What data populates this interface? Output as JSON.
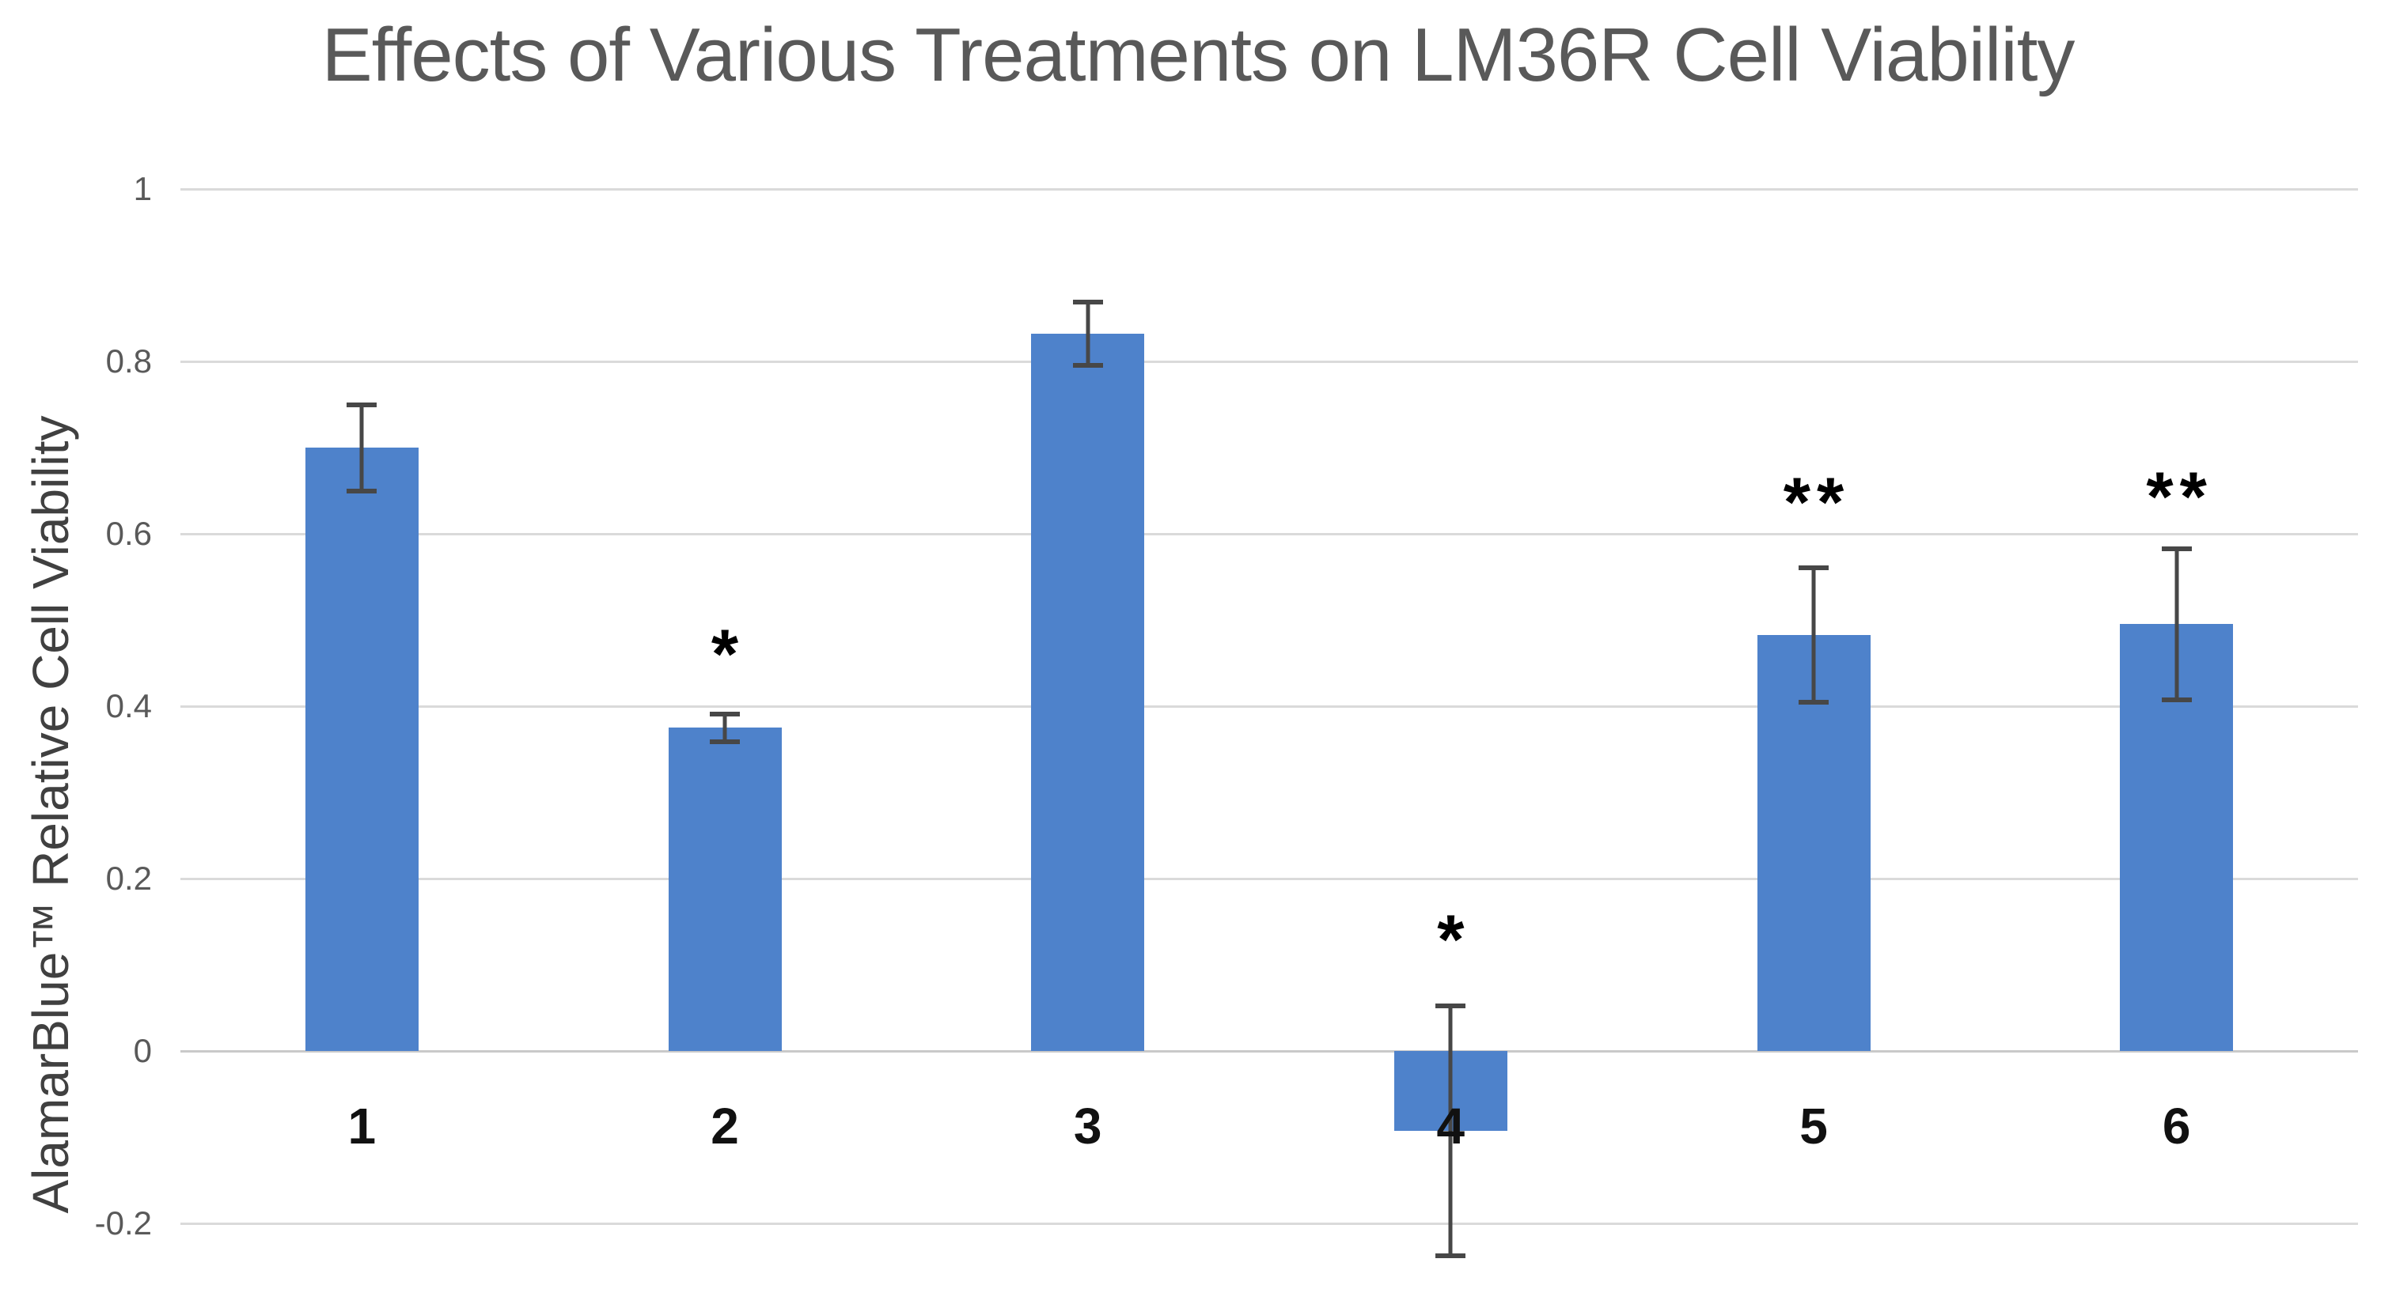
{
  "page": {
    "background": "#FFFFFF"
  },
  "chart_data": {
    "type": "bar",
    "title": "Effects of Various Treatments on LM36R Cell Viability",
    "ylabel": "AlamarBlue™ Relative Cell Viability",
    "xlabel": "",
    "categories": [
      "1",
      "2",
      "3",
      "4",
      "5",
      "6"
    ],
    "values": [
      0.7,
      0.375,
      0.832,
      -0.093,
      0.483,
      0.495
    ],
    "errors": [
      0.05,
      0.016,
      0.037,
      0.145,
      0.078,
      0.088
    ],
    "significance": [
      "",
      "*",
      "",
      "*",
      "**",
      "**"
    ],
    "significance_y": [
      0,
      0.484,
      0,
      0.153,
      0.661,
      0.667
    ],
    "yticks": [
      1,
      0.8,
      0.6,
      0.4,
      0.2,
      0,
      -0.2
    ],
    "ytick_labels": [
      "1",
      "0.8",
      "0.6",
      "0.4",
      "0.2",
      "0",
      "-0.2"
    ],
    "ylim": [
      -0.28,
      1.0
    ],
    "grid": true,
    "legend": false,
    "colors": {
      "bar": "#4E82CB",
      "error_bar": "#474747",
      "gridline": "#DADADA",
      "zero_line": "#C9C9C9",
      "title_text": "#595959",
      "ytick_text": "#595959",
      "ylabel_text": "#404040",
      "xtick_text": "#111111",
      "significance_text": "#000000",
      "background": "#FFFFFF"
    }
  }
}
